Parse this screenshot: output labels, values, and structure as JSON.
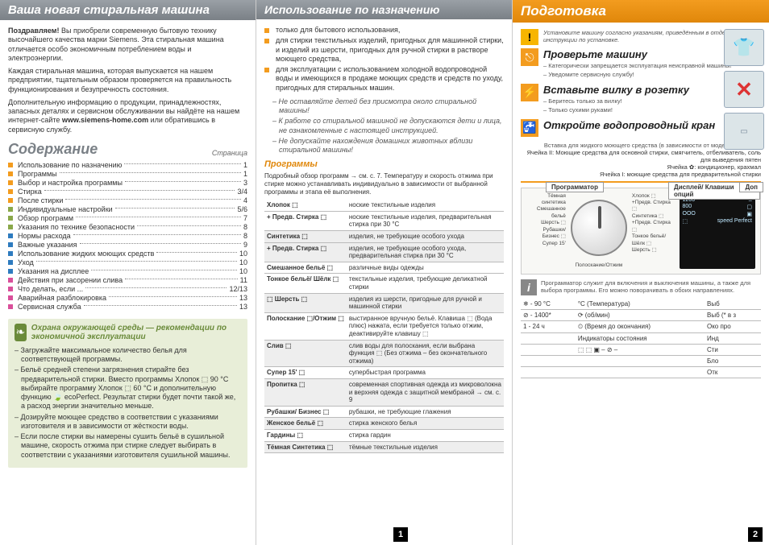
{
  "colors": {
    "header_grey_top": "#9aa0a6",
    "header_grey_bot": "#7a8086",
    "orange_top": "#f39c1f",
    "orange_bot": "#e0870a",
    "eco_bg": "#e8eed8",
    "eco_green": "#6a8a3a"
  },
  "col1": {
    "header": "Ваша новая стиральная машина",
    "congrats_bold": "Поздравляем!",
    "congrats_text": " Вы приобрели современную бытовую технику высочайшего качества марки Siemens. Эта стиральная машина отличается особо экономичным потреблением воды и электроэнергии.",
    "para2": "Каждая стиральная машина, которая выпускается на нашем предприятии, тщательным образом проверяется на правильность функционирования и безупречность состояния.",
    "para3_pre": "Дополнительную информацию о продукции, принадлежностях, запасных деталях и сервисном обслуживании вы найдёте на нашем интернет-сайте ",
    "para3_link": "www.siemens-home.com",
    "para3_post": " или обратившись в сервисную службу.",
    "toc_title": "Содержание",
    "toc_page_word": "Страница",
    "toc": [
      {
        "c": "#f39c1f",
        "t": "Использование по назначению",
        "p": "1"
      },
      {
        "c": "#f39c1f",
        "t": "Программы",
        "p": "1"
      },
      {
        "c": "#f39c1f",
        "t": "Выбор и настройка программы",
        "p": "3"
      },
      {
        "c": "#f39c1f",
        "t": "Стирка",
        "p": "3/4"
      },
      {
        "c": "#f39c1f",
        "t": "После стирки",
        "p": "4"
      },
      {
        "c": "#8aa84a",
        "t": "Индивидуальные настройки",
        "p": "5/6"
      },
      {
        "c": "#8aa84a",
        "t": "Обзор программ",
        "p": "7"
      },
      {
        "c": "#8aa84a",
        "t": "Указания по технике безопасности",
        "p": "8"
      },
      {
        "c": "#2e7bbf",
        "t": "Нормы расхода",
        "p": "8"
      },
      {
        "c": "#2e7bbf",
        "t": "Важные указания",
        "p": "9"
      },
      {
        "c": "#2e7bbf",
        "t": "Использование жидких моющих средств",
        "p": "10"
      },
      {
        "c": "#2e7bbf",
        "t": "Уход",
        "p": "10"
      },
      {
        "c": "#2e7bbf",
        "t": "Указания на дисплее",
        "p": "10"
      },
      {
        "c": "#d94f9a",
        "t": "Действия при засорении слива",
        "p": "11"
      },
      {
        "c": "#d94f9a",
        "t": "Что делать, если ...",
        "p": "12/13"
      },
      {
        "c": "#d94f9a",
        "t": "Аварийная разблокировка",
        "p": "13"
      },
      {
        "c": "#d94f9a",
        "t": "Сервисная служба",
        "p": "13"
      }
    ],
    "eco_title": "Охрана окружающей среды — рекомендации по экономичной эксплуатации",
    "eco_items": [
      "Загружайте максимальное количество белья для соответствующей программы.",
      "Бельё средней степени загрязнения стирайте без предварительной стирки. Вместо программы Хлопок ⬚ 90 °C выбирайте программу Хлопок ⬚ 60 °C и дополнительную функцию 🍃 ecoPerfect. Результат стирки будет почти такой же, а расход энергии значительно меньше.",
      "Дозируйте моющее средство в соответствии с указаниями изготовителя и в зависимости от жёсткости воды.",
      "Если после стирки вы намерены сушить бельё в сушильной машине, скорость отжима при стирке следует выбирать в соответствии с указаниями изготовителя сушильной машины."
    ]
  },
  "col2": {
    "header": "Использование по назначению",
    "bullets": [
      "только для бытового использования,",
      "для стирки текстильных изделий, пригодных для машинной стирки, и изделий из шерсти, пригодных для ручной стирки в растворе моющего средства,",
      "для эксплуатации с использованием холодной водопроводной воды и имеющихся в продаже моющих средств и средств по уходу, пригодных для стиральных машин."
    ],
    "ital_items": [
      "Не оставляйте детей без присмотра около стиральной машины!",
      "К работе со стиральной машиной не допускаются дети и лица, не ознакомленные с настоящей инструкцией.",
      "Не допускайте нахождения домашних животных вблизи стиральной машины!"
    ],
    "prog_title": "Программы",
    "prog_intro": "Подробный обзор программ → см. с. 7. Температуру и скорость отжима при стирке можно устанавливать индивидуально в зависимости от выбранной программы и этапа её выполнения.",
    "prog_rows": [
      {
        "n": "Хлопок ⬚",
        "d": "ноские текстильные изделия"
      },
      {
        "n": "+ Предв. Стирка ⬚",
        "d": "ноские текстильные изделия, предварительная стирка при 30 °C"
      },
      {
        "n": "Синтетика ⬚",
        "d": "изделия, не требующие особого ухода",
        "dark": true
      },
      {
        "n": "+ Предв. Стирка ⬚",
        "d": "изделия, не требующие особого ухода, предварительная стирка при 30 °C",
        "dark": true
      },
      {
        "n": "Смешанное бельё ⬚",
        "d": "различные виды одежды"
      },
      {
        "n": "Тонкое бельё/ Шёлк ⬚",
        "d": "текстильные изделия, требующие деликатной стирки"
      },
      {
        "n": "⬚ Шерсть ⬚",
        "d": "изделия из шерсти, пригодные для ручной и машинной стирки",
        "dark": true
      },
      {
        "n": "Полоскание ⬚/Отжим ⬚",
        "d": "выстиранное вручную бельё. Клавиша ⬚ (Вода плюс) нажата, если требуется только отжим, деактивируйте клавишу ⬚"
      },
      {
        "n": "Слив ⬚",
        "d": "слив воды для полоскания, если выбрана функция ⬚ (Без отжима – без окончательного отжима)",
        "dark": true
      },
      {
        "n": "Супер 15' ⬚",
        "d": "супербыстрая программа"
      },
      {
        "n": "Пропитка ⬚",
        "d": "современная спортивная одежда из микроволокна и верхняя одежда с защитной мембраной → см. с. 9",
        "dark": true
      },
      {
        "n": "Рубашки/ Бизнес ⬚",
        "d": "рубашки, не требующие глажения"
      },
      {
        "n": "Женское бельё ⬚",
        "d": "стирка женского белья",
        "dark": true
      },
      {
        "n": "Гардины ⬚",
        "d": "стирка гардин"
      },
      {
        "n": "Тёмная Синтетика ⬚",
        "d": "тёмные текстильные изделия",
        "dark": true
      }
    ]
  },
  "col3": {
    "header": "Подготовка",
    "install_note": "Установите машину согласно указаниям, приведённым в отдельной инструкции по установке.",
    "steps": [
      {
        "t": "Проверьте машину",
        "items": [
          "Категорически запрещается эксплуатация неисправной машины!",
          "Уведомите сервисную службу!"
        ]
      },
      {
        "t": "Вставьте вилку в розетку",
        "items": [
          "Беритесь только за вилку!",
          "Только сухими руками!"
        ]
      },
      {
        "t": "Откройте водопроводный кран",
        "items": []
      }
    ],
    "tray_note": "Вставка для жидкого моющего средства (в зависимости от модели), см. с. 10",
    "tray_II": "Ячейка II: Моющие средства для основной стирки, смягчитель, отбеливатель, соль для выведения пятен",
    "tray_flower": "Ячейка ✿: кондиционер, крахмал",
    "tray_I": "Ячейка I: моющие средства для предварительной стирки",
    "dial_label": "Программатор",
    "disp_label": "Дисплей/ Клавиши опций",
    "extra_label": "Доп",
    "dial_left": [
      "Тёмная синтетика",
      "Смешанное бельё",
      "Шерсть ⬚",
      "Рубашки/ Бизнес ⬚",
      "Супер 15'"
    ],
    "dial_right": [
      "Хлопок ⬚",
      "+Предв. Стирка ⬚",
      "Синтетика ⬚",
      "+Предв. Стирка ⬚",
      "Тонкое бельё/ Шёлк ⬚",
      "Шерсть ⬚"
    ],
    "dial_bottom": "Полоскание/Отжим",
    "disp_rows": [
      [
        "1200",
        "Ξ"
      ],
      [
        "800",
        "▢"
      ],
      [
        "OOO",
        "▣"
      ],
      [
        "⬚",
        "speed Perfect"
      ]
    ],
    "info_text": "Программатор служит для включения и выключения машины, а также для выбора программы. Его можно поворачивать в обоих направлениях.",
    "opts": [
      {
        "l": "❄ - 90 °C",
        "m": "°C (Температура)",
        "r": "Выб"
      },
      {
        "l": "⊘ - 1400*",
        "m": "⟳ (об/мин)",
        "r": "Выб (* в з"
      },
      {
        "l": "1 - 24 ч",
        "m": "⏲ (Время до окончания)",
        "r": "Око про"
      },
      {
        "l": "",
        "m": "Индикаторы состояния",
        "r": "Инд"
      },
      {
        "l": "",
        "m": "⬚ ⬚ ▣ – ⊘ –",
        "r": "Сти"
      },
      {
        "l": "",
        "m": "",
        "r": "Бло"
      },
      {
        "l": "",
        "m": "",
        "r": "Отк"
      }
    ]
  },
  "page_numbers": {
    "p1": "1",
    "p2": "2"
  }
}
